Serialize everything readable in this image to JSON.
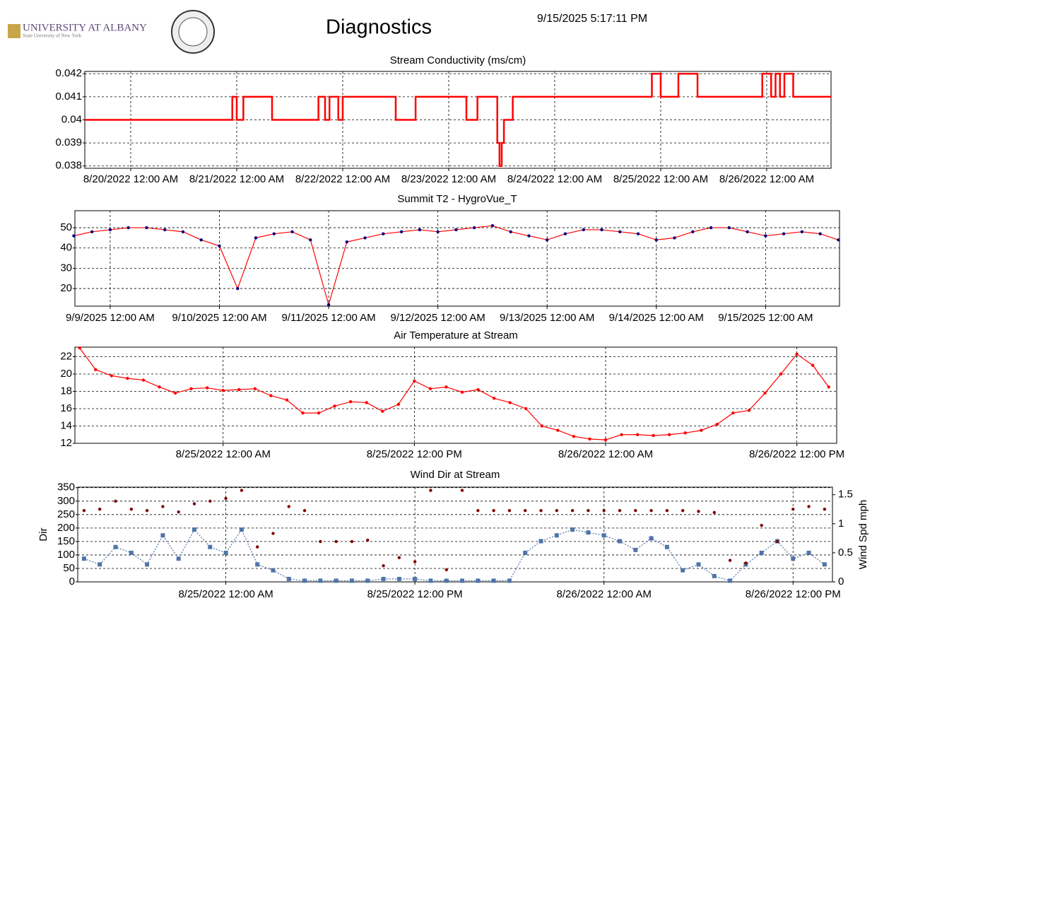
{
  "header": {
    "logo": "UNIVERSITY AT ALBANY",
    "logo_sub": "State University of New York",
    "title": "Diagnostics",
    "timestamp": "9/15/2025 5:17:11 PM"
  },
  "chart_data": [
    {
      "type": "line",
      "title": "Stream Conductivity (ms/cm)",
      "step": true,
      "grid": true,
      "x": [
        "2022-08-19T13:36",
        "2022-08-20T23:00",
        "2022-08-21T00:00",
        "2022-08-21T01:30",
        "2022-08-21T08:00",
        "2022-08-21T18:30",
        "2022-08-21T20:00",
        "2022-08-21T21:00",
        "2022-08-21T23:00",
        "2022-08-22T00:00",
        "2022-08-22T12:00",
        "2022-08-22T16:30",
        "2022-08-23T04:00",
        "2022-08-23T06:30",
        "2022-08-23T11:00",
        "2022-08-23T11:30",
        "2022-08-23T12:00",
        "2022-08-23T12:30",
        "2022-08-23T14:30",
        "2022-08-24T22:00",
        "2022-08-25T00:00",
        "2022-08-25T04:00",
        "2022-08-25T08:20",
        "2022-08-25T23:00",
        "2022-08-26T01:00",
        "2022-08-26T02:00",
        "2022-08-26T03:00",
        "2022-08-26T04:00",
        "2022-08-26T06:00",
        "2022-08-26T14:34"
      ],
      "series": [
        {
          "color": "#ff0000",
          "line": "solid",
          "values": [
            0.04,
            0.041,
            0.04,
            0.041,
            0.04,
            0.041,
            0.04,
            0.041,
            0.04,
            0.041,
            0.04,
            0.041,
            0.04,
            0.041,
            0.039,
            0.038,
            0.039,
            0.04,
            0.041,
            0.042,
            0.041,
            0.042,
            0.041,
            0.042,
            0.041,
            0.042,
            0.041,
            0.042,
            0.041,
            0.041
          ]
        }
      ],
      "xlim": [
        "2022-08-19T13:36",
        "2022-08-26T14:34"
      ],
      "xticks": [
        {
          "value": "2022-08-20T00:00",
          "label": "8/20/2022 12:00 AM"
        },
        {
          "value": "2022-08-21T00:00",
          "label": "8/21/2022 12:00 AM"
        },
        {
          "value": "2022-08-22T00:00",
          "label": "8/22/2022 12:00 AM"
        },
        {
          "value": "2022-08-23T00:00",
          "label": "8/23/2022 12:00 AM"
        },
        {
          "value": "2022-08-24T00:00",
          "label": "8/24/2022 12:00 AM"
        },
        {
          "value": "2022-08-25T00:00",
          "label": "8/25/2022 12:00 AM"
        },
        {
          "value": "2022-08-26T00:00",
          "label": "8/26/2022 12:00 AM"
        }
      ],
      "ylim": [
        0.0379,
        0.0421
      ],
      "yticks": [
        0.038,
        0.039,
        0.04,
        0.041,
        0.042
      ]
    },
    {
      "type": "line",
      "title": "Summit T2 - HygroVue_T",
      "grid": true,
      "x": [
        "2025-09-08T16:00",
        "2025-09-08T20:00",
        "2025-09-09T00:00",
        "2025-09-09T04:00",
        "2025-09-09T08:00",
        "2025-09-09T12:00",
        "2025-09-09T16:00",
        "2025-09-09T20:00",
        "2025-09-10T00:00",
        "2025-09-10T04:00",
        "2025-09-10T08:00",
        "2025-09-10T12:00",
        "2025-09-10T16:00",
        "2025-09-10T20:00",
        "2025-09-11T00:00",
        "2025-09-11T04:00",
        "2025-09-11T08:00",
        "2025-09-11T12:00",
        "2025-09-11T16:00",
        "2025-09-11T20:00",
        "2025-09-12T00:00",
        "2025-09-12T04:00",
        "2025-09-12T08:00",
        "2025-09-12T12:00",
        "2025-09-12T16:00",
        "2025-09-12T20:00",
        "2025-09-13T00:00",
        "2025-09-13T04:00",
        "2025-09-13T08:00",
        "2025-09-13T12:00",
        "2025-09-13T16:00",
        "2025-09-13T20:00",
        "2025-09-14T00:00",
        "2025-09-14T04:00",
        "2025-09-14T08:00",
        "2025-09-14T12:00",
        "2025-09-14T16:00",
        "2025-09-14T20:00",
        "2025-09-15T00:00",
        "2025-09-15T04:00",
        "2025-09-15T08:00",
        "2025-09-15T12:00",
        "2025-09-15T16:00"
      ],
      "series": [
        {
          "color": "#000080",
          "line_color": "#ff0000",
          "line": "solid",
          "marker": "circle",
          "values": [
            46,
            48,
            49,
            50,
            50,
            49,
            48,
            44,
            41,
            20,
            45,
            47,
            48,
            44,
            12,
            43,
            45,
            47,
            48,
            49,
            48,
            49,
            50,
            51,
            48,
            46,
            44,
            47,
            49,
            49,
            48,
            47,
            44,
            45,
            48,
            50,
            50,
            48,
            46,
            47,
            48,
            47,
            44
          ]
        }
      ],
      "xlim": [
        "2025-09-08T16:15",
        "2025-09-15T16:15"
      ],
      "xticks": [
        {
          "value": "2025-09-09T00:00",
          "label": "9/9/2025 12:00 AM"
        },
        {
          "value": "2025-09-10T00:00",
          "label": "9/10/2025 12:00 AM"
        },
        {
          "value": "2025-09-11T00:00",
          "label": "9/11/2025 12:00 AM"
        },
        {
          "value": "2025-09-12T00:00",
          "label": "9/12/2025 12:00 AM"
        },
        {
          "value": "2025-09-13T00:00",
          "label": "9/13/2025 12:00 AM"
        },
        {
          "value": "2025-09-14T00:00",
          "label": "9/14/2025 12:00 AM"
        },
        {
          "value": "2025-09-15T00:00",
          "label": "9/15/2025 12:00 AM"
        }
      ],
      "ylim": [
        11.3,
        58.4
      ],
      "yticks": [
        20,
        30,
        40,
        50
      ]
    },
    {
      "type": "line",
      "title": "Air Temperature at Stream",
      "grid": true,
      "x": [
        "2022-08-24T15:00",
        "2022-08-24T16:00",
        "2022-08-24T17:00",
        "2022-08-24T18:00",
        "2022-08-24T19:00",
        "2022-08-24T20:00",
        "2022-08-24T21:00",
        "2022-08-24T22:00",
        "2022-08-24T23:00",
        "2022-08-25T00:00",
        "2022-08-25T01:00",
        "2022-08-25T02:00",
        "2022-08-25T03:00",
        "2022-08-25T04:00",
        "2022-08-25T05:00",
        "2022-08-25T06:00",
        "2022-08-25T07:00",
        "2022-08-25T08:00",
        "2022-08-25T09:00",
        "2022-08-25T10:00",
        "2022-08-25T11:00",
        "2022-08-25T12:00",
        "2022-08-25T13:00",
        "2022-08-25T14:00",
        "2022-08-25T15:00",
        "2022-08-25T16:00",
        "2022-08-25T17:00",
        "2022-08-25T18:00",
        "2022-08-25T19:00",
        "2022-08-25T20:00",
        "2022-08-25T21:00",
        "2022-08-25T22:00",
        "2022-08-25T23:00",
        "2022-08-26T00:00",
        "2022-08-26T01:00",
        "2022-08-26T02:00",
        "2022-08-26T03:00",
        "2022-08-26T04:00",
        "2022-08-26T05:00",
        "2022-08-26T06:00",
        "2022-08-26T07:00",
        "2022-08-26T08:00",
        "2022-08-26T09:00",
        "2022-08-26T10:00",
        "2022-08-26T11:00",
        "2022-08-26T12:00",
        "2022-08-26T13:00",
        "2022-08-26T14:00"
      ],
      "series": [
        {
          "color": "#ff0000",
          "line": "solid",
          "marker": "circle",
          "values": [
            23,
            20.5,
            19.8,
            19.5,
            19.3,
            18.5,
            17.8,
            18.3,
            18.4,
            18.1,
            18.2,
            18.3,
            17.5,
            17,
            15.5,
            15.5,
            16.3,
            16.8,
            16.7,
            15.7,
            16.5,
            19.2,
            18.3,
            18.5,
            17.9,
            18.2,
            17.2,
            16.7,
            16,
            14,
            13.5,
            12.8,
            12.5,
            12.4,
            13,
            13,
            12.9,
            13,
            13.2,
            13.5,
            14.2,
            15.5,
            15.8,
            17.8,
            20,
            22.3,
            21,
            18.5
          ]
        }
      ],
      "xlim": [
        "2022-08-24T14:42",
        "2022-08-26T14:30"
      ],
      "xticks": [
        {
          "value": "2022-08-25T00:00",
          "label": "8/25/2022 12:00 AM"
        },
        {
          "value": "2022-08-25T12:00",
          "label": "8/25/2022 12:00 PM"
        },
        {
          "value": "2022-08-26T00:00",
          "label": "8/26/2022 12:00 AM"
        },
        {
          "value": "2022-08-26T12:00",
          "label": "8/26/2022 12:00 PM"
        }
      ],
      "ylim": [
        12,
        23.1
      ],
      "yticks": [
        12,
        14,
        16,
        18,
        20,
        22
      ]
    },
    {
      "type": "line",
      "title": "Wind Dir at Stream",
      "grid": true,
      "ylabel": "Dir",
      "y2label": "Wind Spd mph",
      "x": [
        "2022-08-24T15:00",
        "2022-08-24T16:00",
        "2022-08-24T17:00",
        "2022-08-24T18:00",
        "2022-08-24T19:00",
        "2022-08-24T20:00",
        "2022-08-24T21:00",
        "2022-08-24T22:00",
        "2022-08-24T23:00",
        "2022-08-25T00:00",
        "2022-08-25T01:00",
        "2022-08-25T02:00",
        "2022-08-25T03:00",
        "2022-08-25T04:00",
        "2022-08-25T05:00",
        "2022-08-25T06:00",
        "2022-08-25T07:00",
        "2022-08-25T08:00",
        "2022-08-25T09:00",
        "2022-08-25T10:00",
        "2022-08-25T11:00",
        "2022-08-25T12:00",
        "2022-08-25T13:00",
        "2022-08-25T14:00",
        "2022-08-25T15:00",
        "2022-08-25T16:00",
        "2022-08-25T17:00",
        "2022-08-25T18:00",
        "2022-08-25T19:00",
        "2022-08-25T20:00",
        "2022-08-25T21:00",
        "2022-08-25T22:00",
        "2022-08-25T23:00",
        "2022-08-26T00:00",
        "2022-08-26T01:00",
        "2022-08-26T02:00",
        "2022-08-26T03:00",
        "2022-08-26T04:00",
        "2022-08-26T05:00",
        "2022-08-26T06:00",
        "2022-08-26T07:00",
        "2022-08-26T08:00",
        "2022-08-26T09:00",
        "2022-08-26T10:00",
        "2022-08-26T11:00",
        "2022-08-26T12:00",
        "2022-08-26T13:00",
        "2022-08-26T14:00"
      ],
      "series": [
        {
          "color": "#4f74a8",
          "line": "dotted",
          "marker": "square",
          "axis": "y2",
          "values": [
            0.4,
            0.3,
            0.6,
            0.5,
            0.3,
            0.8,
            0.4,
            0.9,
            0.6,
            0.5,
            0.9,
            0.3,
            0.2,
            0.05,
            0.02,
            0.02,
            0.02,
            0.02,
            0.02,
            0.05,
            0.05,
            0.05,
            0.02,
            0.02,
            0.02,
            0.02,
            0.02,
            0.02,
            0.5,
            0.7,
            0.8,
            0.9,
            0.85,
            0.8,
            0.7,
            0.55,
            0.75,
            0.6,
            0.2,
            0.3,
            0.1,
            0.02,
            0.3,
            0.5,
            0.7,
            0.4,
            0.5,
            0.3
          ]
        },
        {
          "color": "#800000",
          "marker": "circle",
          "values": [
            265,
            270,
            300,
            270,
            265,
            280,
            260,
            290,
            300,
            310,
            340,
            130,
            180,
            280,
            265,
            150,
            150,
            150,
            155,
            60,
            90,
            75,
            340,
            45,
            340,
            265,
            265,
            265,
            265,
            265,
            265,
            265,
            265,
            265,
            265,
            265,
            265,
            265,
            265,
            262,
            258,
            80,
            70,
            210,
            150,
            270,
            280,
            270
          ]
        }
      ],
      "xlim": [
        "2022-08-24T14:36",
        "2022-08-26T14:30"
      ],
      "xticks": [
        {
          "value": "2022-08-25T00:00",
          "label": "8/25/2022 12:00 AM"
        },
        {
          "value": "2022-08-25T12:00",
          "label": "8/25/2022 12:00 PM"
        },
        {
          "value": "2022-08-26T00:00",
          "label": "8/26/2022 12:00 AM"
        },
        {
          "value": "2022-08-26T12:00",
          "label": "8/26/2022 12:00 PM"
        }
      ],
      "ylim": [
        0,
        352
      ],
      "yticks": [
        0,
        50,
        100,
        150,
        200,
        250,
        300,
        350
      ],
      "y2lim": [
        0,
        1.63
      ],
      "y2ticks": [
        0,
        0.5,
        1,
        1.5
      ]
    }
  ]
}
